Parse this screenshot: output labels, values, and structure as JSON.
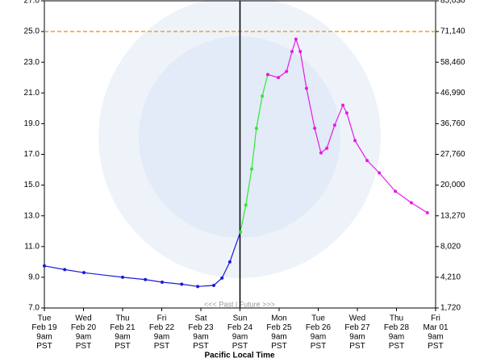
{
  "chart_data": {
    "type": "line",
    "x_label": "Pacific Local Time",
    "annotation": "<<< Past | Future >>>",
    "xlim": [
      0,
      10
    ],
    "xticks": [
      {
        "value": 0,
        "label": [
          "Tue",
          "Feb 19",
          "9am",
          "PST"
        ]
      },
      {
        "value": 1,
        "label": [
          "Wed",
          "Feb 20",
          "9am",
          "PST"
        ]
      },
      {
        "value": 2,
        "label": [
          "Thu",
          "Feb 21",
          "9am",
          "PST"
        ]
      },
      {
        "value": 3,
        "label": [
          "Fri",
          "Feb 22",
          "9am",
          "PST"
        ]
      },
      {
        "value": 4,
        "label": [
          "Sat",
          "Feb 23",
          "9am",
          "PST"
        ]
      },
      {
        "value": 5,
        "label": [
          "Sun",
          "Feb 24",
          "9am",
          "PST"
        ]
      },
      {
        "value": 6,
        "label": [
          "Mon",
          "Feb 25",
          "9am",
          "PST"
        ]
      },
      {
        "value": 7,
        "label": [
          "Tue",
          "Feb 26",
          "9am",
          "PST"
        ]
      },
      {
        "value": 8,
        "label": [
          "Wed",
          "Feb 27",
          "9am",
          "PST"
        ]
      },
      {
        "value": 9,
        "label": [
          "Thu",
          "Feb 28",
          "9am",
          "PST"
        ]
      },
      {
        "value": 10,
        "label": [
          "Fri",
          "Mar 01",
          "9am",
          "PST"
        ]
      }
    ],
    "ylim": [
      7,
      27
    ],
    "yticks": [
      {
        "value": 7,
        "label": "7.0"
      },
      {
        "value": 9,
        "label": "9.0"
      },
      {
        "value": 11,
        "label": "11.0"
      },
      {
        "value": 13,
        "label": "13.0"
      },
      {
        "value": 15,
        "label": "15.0"
      },
      {
        "value": 17,
        "label": "17.0"
      },
      {
        "value": 19,
        "label": "19.0"
      },
      {
        "value": 21,
        "label": "21.0"
      },
      {
        "value": 23,
        "label": "23.0"
      },
      {
        "value": 25,
        "label": "25.0"
      },
      {
        "value": 27,
        "label": "27.0"
      }
    ],
    "y2ticks": [
      {
        "value": 1720,
        "label": "1,720"
      },
      {
        "value": 4210,
        "label": "4,210"
      },
      {
        "value": 8020,
        "label": "8,020"
      },
      {
        "value": 13270,
        "label": "13,270"
      },
      {
        "value": 20000,
        "label": "20,000"
      },
      {
        "value": 27760,
        "label": "27,760"
      },
      {
        "value": 36760,
        "label": "36,760"
      },
      {
        "value": 46990,
        "label": "46,990"
      },
      {
        "value": 58460,
        "label": "58,460"
      },
      {
        "value": 71140,
        "label": "71,140"
      },
      {
        "value": 85030,
        "label": "85,030"
      }
    ],
    "flood_stage": 25,
    "flood_color": "#f0a020",
    "now": 5,
    "series": [
      {
        "color": "#1a1adc",
        "x": [
          0,
          0.52,
          1.01,
          2.0,
          2.58,
          3.01,
          3.51,
          3.92,
          4.33,
          4.54,
          4.74,
          5.01
        ],
        "values": [
          9.74,
          9.5,
          9.3,
          9.0,
          8.85,
          8.68,
          8.55,
          8.4,
          8.47,
          8.95,
          10.0,
          11.95
        ]
      },
      {
        "color": "#33e633",
        "x": [
          5.01,
          5.15,
          5.3,
          5.42,
          5.57,
          5.71
        ],
        "values": [
          11.95,
          13.7,
          16.05,
          18.7,
          20.8,
          22.2
        ]
      },
      {
        "color": "#e619e6",
        "x": [
          5.71,
          5.98,
          6.19,
          6.33,
          6.43,
          6.54,
          6.7,
          6.91,
          7.07,
          7.22,
          7.42,
          7.63,
          7.73,
          7.94,
          8.25,
          8.56,
          8.97,
          9.38,
          9.79
        ],
        "values": [
          22.2,
          22.0,
          22.4,
          23.7,
          24.5,
          23.7,
          21.3,
          18.7,
          17.1,
          17.4,
          18.9,
          20.2,
          19.7,
          17.9,
          16.6,
          15.8,
          14.6,
          13.85,
          13.2
        ]
      }
    ]
  }
}
